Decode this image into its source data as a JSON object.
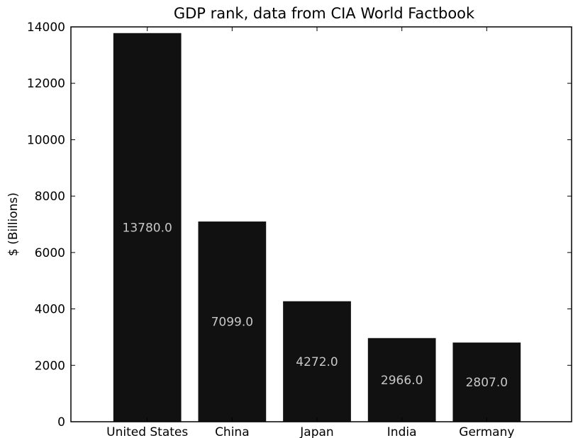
{
  "chart_data": {
    "type": "bar",
    "title": "GDP rank, data from CIA World Factbook",
    "xlabel": "",
    "ylabel": "$ (Billions)",
    "categories": [
      "United States",
      "China",
      "Japan",
      "India",
      "Germany"
    ],
    "values": [
      13780.0,
      7099.0,
      4272.0,
      2966.0,
      2807.0
    ],
    "value_labels": [
      "13780.0",
      "7099.0",
      "4272.0",
      "2966.0",
      "2807.0"
    ],
    "ylim": [
      0,
      14000
    ],
    "yticks": [
      0,
      2000,
      4000,
      6000,
      8000,
      10000,
      12000,
      14000
    ],
    "ytick_labels": [
      "0",
      "2000",
      "4000",
      "6000",
      "8000",
      "10000",
      "12000",
      "14000"
    ],
    "bar_color": "#111111",
    "value_label_color": "#c8c8c8",
    "grid": false,
    "legend": "none"
  }
}
